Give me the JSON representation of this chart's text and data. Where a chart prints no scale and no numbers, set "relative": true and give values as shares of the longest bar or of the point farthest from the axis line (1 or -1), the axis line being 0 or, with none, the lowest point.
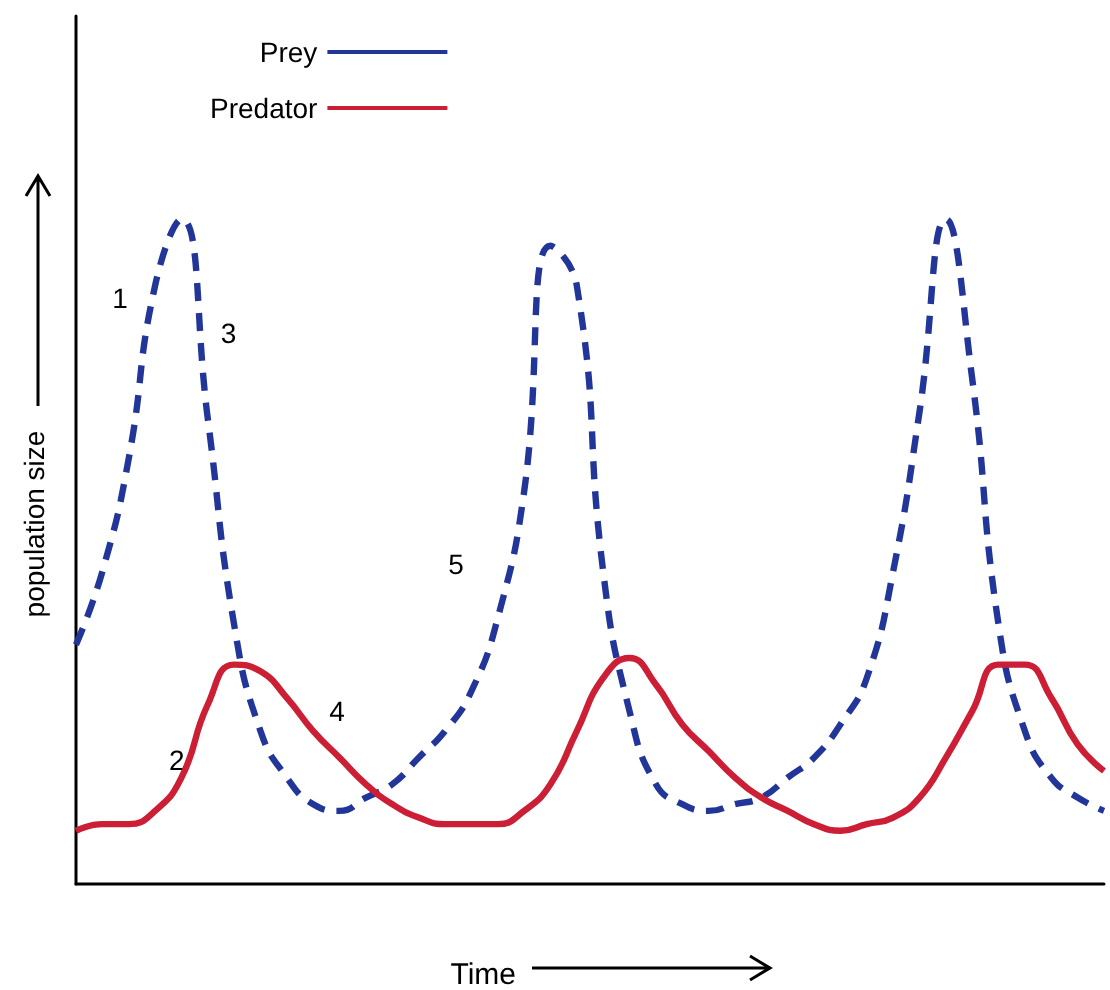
{
  "chart_data": {
    "type": "line",
    "relative": true,
    "xlabel": "Time",
    "ylabel": "population size",
    "legend": "top",
    "grid": false,
    "categories": [
      null,
      null,
      null,
      null,
      null,
      null,
      null,
      null,
      null,
      null,
      null,
      null,
      null,
      null,
      null,
      null,
      null,
      null,
      null,
      null,
      null,
      null,
      null,
      null,
      null,
      null,
      null,
      null,
      null,
      null,
      null,
      null,
      null,
      null,
      null,
      null,
      null,
      null,
      null,
      null
    ],
    "series": [
      {
        "name": "Prey",
        "color": "#22369a",
        "line_style": "dashed",
        "values": [
          0.36,
          0.47,
          0.64,
          0.9,
          1.0,
          0.7,
          0.39,
          0.23,
          0.16,
          0.12,
          0.11,
          0.13,
          0.15,
          0.19,
          0.23,
          0.29,
          0.4,
          0.59,
          0.96,
          0.9,
          0.47,
          0.26,
          0.15,
          0.12,
          0.11,
          0.12,
          0.13,
          0.16,
          0.19,
          0.24,
          0.31,
          0.47,
          0.71,
          1.0,
          0.76,
          0.39,
          0.23,
          0.16,
          0.13,
          0.11
        ]
      },
      {
        "name": "Predator",
        "color": "#cc1f36",
        "line_style": "solid",
        "values": [
          0.08,
          0.09,
          0.09,
          0.11,
          0.16,
          0.27,
          0.33,
          0.32,
          0.28,
          0.23,
          0.19,
          0.15,
          0.12,
          0.1,
          0.09,
          0.09,
          0.09,
          0.11,
          0.15,
          0.23,
          0.31,
          0.34,
          0.3,
          0.24,
          0.2,
          0.16,
          0.13,
          0.11,
          0.09,
          0.08,
          0.09,
          0.1,
          0.13,
          0.19,
          0.26,
          0.33,
          0.33,
          0.28,
          0.21,
          0.17
        ]
      }
    ],
    "annotations": [
      "1",
      "2",
      "3",
      "4",
      "5"
    ]
  }
}
